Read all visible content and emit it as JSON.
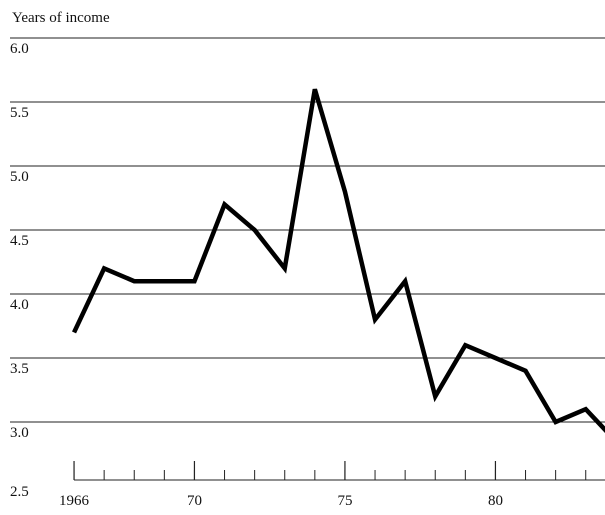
{
  "chart_data": {
    "type": "line",
    "y_axis_label": "Years of income",
    "x": [
      1966,
      1967,
      1968,
      1969,
      1970,
      1971,
      1972,
      1973,
      1974,
      1975,
      1976,
      1977,
      1978,
      1979,
      1980,
      1981,
      1982,
      1983,
      1984
    ],
    "values": [
      3.7,
      4.2,
      4.1,
      4.1,
      4.1,
      4.7,
      4.5,
      4.2,
      5.6,
      4.8,
      3.8,
      4.1,
      3.2,
      3.6,
      3.5,
      3.4,
      3.0,
      3.1,
      2.85
    ],
    "color": "#000000",
    "xlim": [
      1963.54,
      1983.64
    ],
    "ylim": [
      2.5,
      6.0
    ],
    "xticks": [
      {
        "value": 1966,
        "label": "1966"
      },
      {
        "value": 1970,
        "label": "70"
      },
      {
        "value": 1975,
        "label": "75"
      },
      {
        "value": 1980,
        "label": "80"
      }
    ],
    "xticks_minor": [
      1966,
      1967,
      1968,
      1969,
      1970,
      1971,
      1972,
      1973,
      1974,
      1975,
      1976,
      1977,
      1978,
      1979,
      1980,
      1981,
      1982,
      1983
    ],
    "yticks": [
      {
        "value": 2.5,
        "label": "2.5"
      },
      {
        "value": 3,
        "label": "3.0"
      },
      {
        "value": 3.5,
        "label": "3.5"
      },
      {
        "value": 4,
        "label": "4.0"
      },
      {
        "value": 4.5,
        "label": "4.5"
      },
      {
        "value": 5,
        "label": "5.0"
      },
      {
        "value": 5.5,
        "label": "5.5"
      },
      {
        "value": 6,
        "label": "6.0"
      }
    ],
    "grid": true
  }
}
